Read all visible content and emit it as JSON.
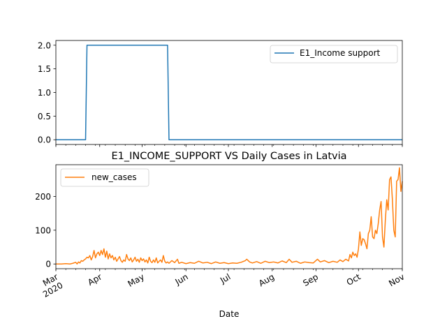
{
  "chart_data": [
    {
      "type": "line",
      "title": "",
      "xlabel": "",
      "ylabel": "",
      "xlim": [
        "2020-03-01",
        "2020-11-01"
      ],
      "ylim": [
        -0.1,
        2.1
      ],
      "yticks": [
        0.0,
        0.5,
        1.0,
        1.5,
        2.0
      ],
      "ytick_labels": [
        "0.0",
        "0.5",
        "1.0",
        "1.5",
        "2.0"
      ],
      "legend_position": "top-right",
      "series": [
        {
          "name": "E1_Income support",
          "color": "#1f77b4",
          "points": [
            [
              "2020-03-01",
              0
            ],
            [
              "2020-03-22",
              0
            ],
            [
              "2020-03-23",
              2
            ],
            [
              "2020-05-19",
              2
            ],
            [
              "2020-05-20",
              0
            ],
            [
              "2020-11-01",
              0
            ]
          ]
        }
      ]
    },
    {
      "type": "line",
      "title": "E1_INCOME_SUPPORT VS Daily Cases in Latvia",
      "xlabel": "Date",
      "ylabel": "",
      "xlim": [
        "2020-03-01",
        "2020-11-01"
      ],
      "ylim": [
        -14,
        294
      ],
      "yticks": [
        0,
        100,
        200
      ],
      "ytick_labels": [
        "0",
        "100",
        "200"
      ],
      "xticks": [
        "2020-03-01",
        "2020-04-01",
        "2020-05-01",
        "2020-06-01",
        "2020-07-01",
        "2020-08-01",
        "2020-09-01",
        "2020-10-01",
        "2020-11-01"
      ],
      "xtick_labels": [
        "Mar\n2020",
        "Apr",
        "May",
        "Jun",
        "Jul",
        "Aug",
        "Sep",
        "Oct",
        "Nov"
      ],
      "legend_position": "top-left",
      "series": [
        {
          "name": "new_cases",
          "color": "#ff7f0e",
          "points": [
            [
              "2020-03-01",
              0
            ],
            [
              "2020-03-05",
              0
            ],
            [
              "2020-03-08",
              1
            ],
            [
              "2020-03-11",
              0
            ],
            [
              "2020-03-13",
              2
            ],
            [
              "2020-03-15",
              5
            ],
            [
              "2020-03-16",
              0
            ],
            [
              "2020-03-17",
              6
            ],
            [
              "2020-03-18",
              3
            ],
            [
              "2020-03-19",
              10
            ],
            [
              "2020-03-20",
              8
            ],
            [
              "2020-03-21",
              12
            ],
            [
              "2020-03-22",
              15
            ],
            [
              "2020-03-23",
              20
            ],
            [
              "2020-03-24",
              18
            ],
            [
              "2020-03-25",
              25
            ],
            [
              "2020-03-26",
              12
            ],
            [
              "2020-03-27",
              22
            ],
            [
              "2020-03-28",
              40
            ],
            [
              "2020-03-29",
              18
            ],
            [
              "2020-03-30",
              30
            ],
            [
              "2020-03-31",
              35
            ],
            [
              "2020-04-01",
              25
            ],
            [
              "2020-04-02",
              40
            ],
            [
              "2020-04-03",
              28
            ],
            [
              "2020-04-04",
              45
            ],
            [
              "2020-04-05",
              20
            ],
            [
              "2020-04-06",
              38
            ],
            [
              "2020-04-07",
              15
            ],
            [
              "2020-04-08",
              30
            ],
            [
              "2020-04-09",
              18
            ],
            [
              "2020-04-10",
              25
            ],
            [
              "2020-04-11",
              12
            ],
            [
              "2020-04-12",
              20
            ],
            [
              "2020-04-13",
              8
            ],
            [
              "2020-04-14",
              15
            ],
            [
              "2020-04-15",
              22
            ],
            [
              "2020-04-16",
              10
            ],
            [
              "2020-04-17",
              5
            ],
            [
              "2020-04-18",
              12
            ],
            [
              "2020-04-19",
              8
            ],
            [
              "2020-04-20",
              28
            ],
            [
              "2020-04-21",
              15
            ],
            [
              "2020-04-22",
              10
            ],
            [
              "2020-04-23",
              18
            ],
            [
              "2020-04-24",
              6
            ],
            [
              "2020-04-25",
              12
            ],
            [
              "2020-04-26",
              20
            ],
            [
              "2020-04-27",
              8
            ],
            [
              "2020-04-28",
              14
            ],
            [
              "2020-04-29",
              5
            ],
            [
              "2020-04-30",
              18
            ],
            [
              "2020-05-01",
              10
            ],
            [
              "2020-05-02",
              15
            ],
            [
              "2020-05-03",
              6
            ],
            [
              "2020-05-04",
              12
            ],
            [
              "2020-05-05",
              3
            ],
            [
              "2020-05-06",
              20
            ],
            [
              "2020-05-07",
              8
            ],
            [
              "2020-05-08",
              4
            ],
            [
              "2020-05-09",
              12
            ],
            [
              "2020-05-10",
              5
            ],
            [
              "2020-05-11",
              18
            ],
            [
              "2020-05-12",
              3
            ],
            [
              "2020-05-13",
              8
            ],
            [
              "2020-05-14",
              12
            ],
            [
              "2020-05-15",
              5
            ],
            [
              "2020-05-16",
              25
            ],
            [
              "2020-05-17",
              8
            ],
            [
              "2020-05-18",
              3
            ],
            [
              "2020-05-19",
              6
            ],
            [
              "2020-05-20",
              2
            ],
            [
              "2020-05-22",
              10
            ],
            [
              "2020-05-24",
              4
            ],
            [
              "2020-05-26",
              14
            ],
            [
              "2020-05-27",
              2
            ],
            [
              "2020-05-29",
              5
            ],
            [
              "2020-06-01",
              1
            ],
            [
              "2020-06-04",
              4
            ],
            [
              "2020-06-07",
              2
            ],
            [
              "2020-06-10",
              8
            ],
            [
              "2020-06-13",
              3
            ],
            [
              "2020-06-16",
              5
            ],
            [
              "2020-06-19",
              1
            ],
            [
              "2020-06-22",
              6
            ],
            [
              "2020-06-25",
              2
            ],
            [
              "2020-06-28",
              4
            ],
            [
              "2020-07-01",
              1
            ],
            [
              "2020-07-04",
              3
            ],
            [
              "2020-07-07",
              2
            ],
            [
              "2020-07-10",
              5
            ],
            [
              "2020-07-13",
              10
            ],
            [
              "2020-07-14",
              14
            ],
            [
              "2020-07-16",
              6
            ],
            [
              "2020-07-18",
              3
            ],
            [
              "2020-07-21",
              7
            ],
            [
              "2020-07-24",
              2
            ],
            [
              "2020-07-27",
              8
            ],
            [
              "2020-07-30",
              4
            ],
            [
              "2020-08-02",
              6
            ],
            [
              "2020-08-05",
              3
            ],
            [
              "2020-08-08",
              9
            ],
            [
              "2020-08-11",
              4
            ],
            [
              "2020-08-13",
              14
            ],
            [
              "2020-08-15",
              5
            ],
            [
              "2020-08-18",
              8
            ],
            [
              "2020-08-21",
              2
            ],
            [
              "2020-08-24",
              6
            ],
            [
              "2020-08-27",
              4
            ],
            [
              "2020-08-30",
              3
            ],
            [
              "2020-09-02",
              14
            ],
            [
              "2020-09-04",
              6
            ],
            [
              "2020-09-07",
              10
            ],
            [
              "2020-09-10",
              4
            ],
            [
              "2020-09-13",
              8
            ],
            [
              "2020-09-16",
              5
            ],
            [
              "2020-09-18",
              12
            ],
            [
              "2020-09-20",
              7
            ],
            [
              "2020-09-22",
              14
            ],
            [
              "2020-09-24",
              9
            ],
            [
              "2020-09-25",
              28
            ],
            [
              "2020-09-26",
              18
            ],
            [
              "2020-09-27",
              35
            ],
            [
              "2020-09-28",
              25
            ],
            [
              "2020-09-29",
              30
            ],
            [
              "2020-09-30",
              20
            ],
            [
              "2020-10-01",
              45
            ],
            [
              "2020-10-02",
              95
            ],
            [
              "2020-10-03",
              55
            ],
            [
              "2020-10-04",
              75
            ],
            [
              "2020-10-05",
              72
            ],
            [
              "2020-10-06",
              60
            ],
            [
              "2020-10-07",
              45
            ],
            [
              "2020-10-08",
              90
            ],
            [
              "2020-10-09",
              100
            ],
            [
              "2020-10-10",
              140
            ],
            [
              "2020-10-11",
              80
            ],
            [
              "2020-10-12",
              75
            ],
            [
              "2020-10-13",
              100
            ],
            [
              "2020-10-14",
              90
            ],
            [
              "2020-10-15",
              120
            ],
            [
              "2020-10-16",
              160
            ],
            [
              "2020-10-17",
              185
            ],
            [
              "2020-10-18",
              80
            ],
            [
              "2020-10-19",
              50
            ],
            [
              "2020-10-20",
              130
            ],
            [
              "2020-10-21",
              190
            ],
            [
              "2020-10-22",
              160
            ],
            [
              "2020-10-23",
              250
            ],
            [
              "2020-10-24",
              258
            ],
            [
              "2020-10-25",
              190
            ],
            [
              "2020-10-26",
              100
            ],
            [
              "2020-10-27",
              80
            ],
            [
              "2020-10-28",
              245
            ],
            [
              "2020-10-29",
              250
            ],
            [
              "2020-10-30",
              285
            ],
            [
              "2020-10-31",
              215
            ],
            [
              "2020-11-01",
              245
            ]
          ]
        }
      ]
    }
  ]
}
